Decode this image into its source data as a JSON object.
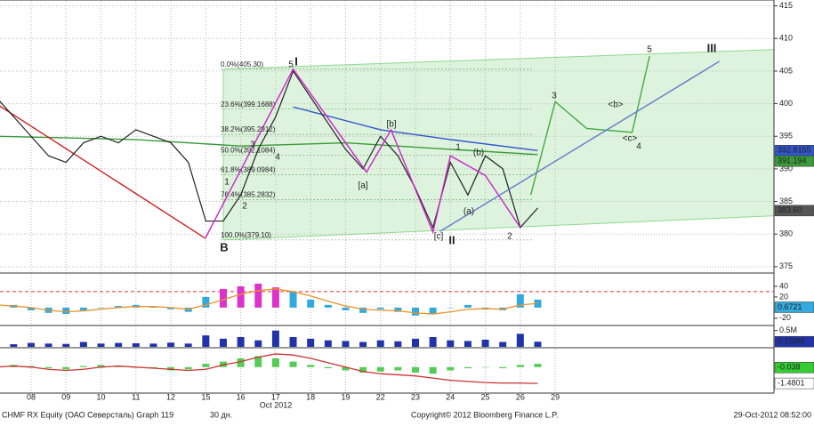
{
  "chart_data": {
    "type": "line",
    "title": "CHMF RX Equity (ОАО Северсталь) Graph 119",
    "period": "30 дн.",
    "copyright": "Copyright© 2012 Bloomberg Finance L.P.",
    "timestamp": "29-Oct-2012 08:52:00",
    "x_label": "Oct 2012",
    "grid": true,
    "xlim": [
      -0.89,
      21.26
    ],
    "xticks": [
      {
        "value": 0,
        "label": "08"
      },
      {
        "value": 1,
        "label": "09"
      },
      {
        "value": 2,
        "label": "10"
      },
      {
        "value": 3,
        "label": "11"
      },
      {
        "value": 4,
        "label": "12"
      },
      {
        "value": 5,
        "label": "15"
      },
      {
        "value": 6,
        "label": "16"
      },
      {
        "value": 7,
        "label": "17"
      },
      {
        "value": 8,
        "label": "18"
      },
      {
        "value": 9,
        "label": "19"
      },
      {
        "value": 10,
        "label": "22"
      },
      {
        "value": 11,
        "label": "23"
      },
      {
        "value": 12,
        "label": "24"
      },
      {
        "value": 13,
        "label": "25"
      },
      {
        "value": 14,
        "label": "26"
      },
      {
        "value": 15,
        "label": "29"
      }
    ],
    "ylim": [
      374.3,
      415.9
    ],
    "yticks": [
      375,
      380,
      385,
      390,
      395,
      400,
      405,
      410,
      415
    ],
    "x": [
      -1,
      -0.5,
      0,
      0.5,
      1,
      1.5,
      2,
      2.5,
      3,
      3.5,
      4,
      4.5,
      5,
      5.5,
      6,
      6.5,
      7,
      7.5,
      8,
      8.5,
      9,
      9.5,
      10,
      10.5,
      11,
      11.5,
      12,
      12.5,
      13,
      13.5,
      14,
      14.5
    ],
    "channel": {
      "color": "#8fd88f",
      "x": [
        5.5,
        21.26
      ],
      "upper": [
        405.3,
        408.3
      ],
      "lower": [
        379.1,
        382.8
      ]
    },
    "fib_levels": [
      {
        "value": 405.3,
        "label": "0.0%(405.30)"
      },
      {
        "value": 399.1688,
        "label": "23.6%(399.1688)"
      },
      {
        "value": 395.2912,
        "label": "38.2%(395.2912)"
      },
      {
        "value": 392.1084,
        "label": "50.0%(392.1084)"
      },
      {
        "value": 389.0984,
        "label": "61.8%(389.0984)"
      },
      {
        "value": 385.2832,
        "label": "76.4%(385.2832)"
      },
      {
        "value": 379.1,
        "label": "100.0%(379.10)"
      }
    ],
    "series": [
      {
        "color": "#3a9a3a",
        "x": [
          -1,
          3,
          6,
          9,
          12,
          14.5
        ],
        "values": [
          395,
          394.5,
          393.5,
          394,
          393,
          392.2
        ]
      },
      {
        "color": "#3355cc",
        "x": [
          7.5,
          10,
          12,
          14.5
        ],
        "values": [
          399.5,
          396,
          394.5,
          392.8
        ]
      },
      {
        "color": "#cc2222",
        "x": [
          -1,
          5
        ],
        "values": [
          400,
          379.3
        ]
      },
      {
        "color": "#222222",
        "x": [
          -1,
          -0.5,
          0,
          0.5,
          1,
          1.5,
          2,
          2.5,
          3,
          3.5,
          4,
          4.5,
          5,
          5.5,
          6,
          6.5,
          7,
          7.5,
          8,
          8.5,
          9,
          9.5,
          10,
          10.5,
          11,
          11.5,
          12,
          12.5,
          13,
          13.5,
          14,
          14.5
        ],
        "values": [
          401,
          398,
          395,
          392,
          391,
          394,
          395,
          394,
          396,
          395,
          394,
          391,
          382,
          382,
          386,
          393,
          398,
          405,
          401,
          397,
          393,
          390,
          395,
          392,
          387,
          381,
          391,
          386,
          392,
          390,
          381,
          384
        ]
      },
      {
        "color": "#cc22cc",
        "x": [
          5,
          7.5,
          9.6,
          10.3,
          11.5,
          12,
          13,
          14
        ],
        "values": [
          379.5,
          405.3,
          389.5,
          396,
          380.3,
          392,
          389,
          381
        ]
      },
      {
        "color": "#44aa44",
        "x": [
          14.3,
          15,
          15.9,
          17.2,
          17.7
        ],
        "values": [
          386,
          400.3,
          396.2,
          395.6,
          407.3
        ]
      },
      {
        "color": "#6677cc",
        "x": [
          11.7,
          19.7
        ],
        "values": [
          380.4,
          406.5
        ]
      }
    ],
    "last_values": [
      {
        "value": 392.8155,
        "color": "#3355cc"
      },
      {
        "value": 391.194,
        "color": "#3a9a3a"
      },
      {
        "value": {
          "value": 383.6,
          "label": "383.60"
        },
        "color": "#555555"
      }
    ],
    "annotations": [
      "I",
      "II",
      "III",
      "B",
      "1",
      "2",
      "3",
      "4",
      "5",
      "[a]",
      "[b]",
      "[c]",
      "(a)",
      "(b)",
      "1",
      "2",
      "3",
      "4",
      "5",
      "<b>",
      "<c>"
    ],
    "panels": [
      {
        "ylim": [
          -32,
          60
        ],
        "yticks": [
          40,
          20,
          -20
        ],
        "ref": 30,
        "hist": [
          10,
          5,
          -5,
          -10,
          -12,
          -5,
          0,
          3,
          5,
          2,
          -3,
          -8,
          20,
          35,
          40,
          45,
          38,
          30,
          15,
          5,
          -5,
          -10,
          -3,
          -8,
          -15,
          -12,
          0,
          5,
          -3,
          -5,
          25,
          15
        ],
        "line": [
          5,
          3,
          0,
          -5,
          -8,
          -6,
          -3,
          0,
          2,
          2,
          0,
          -3,
          5,
          15,
          25,
          32,
          35,
          30,
          22,
          12,
          3,
          -3,
          -5,
          -6,
          -10,
          -12,
          -8,
          -3,
          -2,
          -3,
          5,
          8
        ],
        "last": [
          {
            "value": {
              "value": 0.6721,
              "label": "0.6721"
            },
            "color": "#33aadd"
          }
        ]
      },
      {
        "ylim": [
          0,
          0.6
        ],
        "yticks": [
          {
            "value": 0.5,
            "label": "0.5M"
          }
        ],
        "hist": [
          0.1,
          0.08,
          0.12,
          0.1,
          0.09,
          0.15,
          0.1,
          0.12,
          0.11,
          0.1,
          0.13,
          0.1,
          0.35,
          0.25,
          0.3,
          0.2,
          0.5,
          0.3,
          0.25,
          0.2,
          0.18,
          0.15,
          0.2,
          0.17,
          0.25,
          0.3,
          0.2,
          0.18,
          0.22,
          0.15,
          0.4,
          0.158
        ],
        "last": [
          {
            "value": {
              "value": 0.158,
              "label": "0.158M"
            },
            "color": "#2233aa"
          }
        ]
      },
      {
        "ylim": [
          -2.2,
          1.6
        ],
        "yticks": [],
        "hist": [
          0,
          0.2,
          0.1,
          -0.1,
          -0.2,
          0.1,
          0.2,
          0.1,
          0,
          -0.1,
          -0.3,
          -0.2,
          0.3,
          0.5,
          0.8,
          1.0,
          0.8,
          0.5,
          0.2,
          -0.1,
          -0.3,
          -0.5,
          -0.4,
          -0.3,
          -0.5,
          -0.6,
          -0.3,
          -0.1,
          0,
          -0.1,
          0.2,
          0.3
        ],
        "line": [
          0,
          0.1,
          0,
          -0.2,
          -0.3,
          -0.2,
          0,
          0.1,
          0,
          -0.1,
          -0.2,
          -0.3,
          -0.2,
          0.2,
          0.5,
          0.9,
          1.2,
          1.1,
          0.8,
          0.4,
          0,
          -0.4,
          -0.6,
          -0.7,
          -0.8,
          -1.0,
          -1.2,
          -1.3,
          -1.4,
          -1.45,
          -1.45,
          -1.48
        ],
        "last": [
          {
            "value": -0.038,
            "color": "#33cc33"
          },
          {
            "value": -1.4801,
            "color": "#ffffff"
          }
        ]
      }
    ]
  }
}
